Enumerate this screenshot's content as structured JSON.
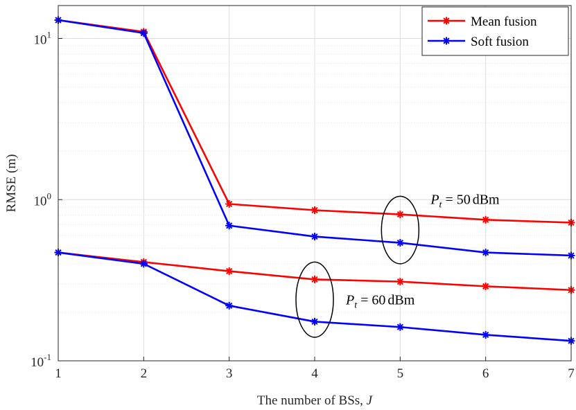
{
  "chart_data": {
    "type": "line",
    "xlabel_prefix": "The number of BSs, ",
    "xlabel_var": "J",
    "ylabel": "RMSE (m)",
    "yscale": "log",
    "xlim": [
      1,
      7
    ],
    "ylim": [
      0.1,
      16
    ],
    "x": [
      1,
      2,
      3,
      4,
      5,
      6,
      7
    ],
    "x_tick_labels": [
      "1",
      "2",
      "3",
      "4",
      "5",
      "6",
      "7"
    ],
    "y_tick_labels": [
      {
        "value": 0.1,
        "base": "10",
        "exp": "-1"
      },
      {
        "value": 1,
        "base": "10",
        "exp": "0"
      },
      {
        "value": 10,
        "base": "10",
        "exp": "1"
      }
    ],
    "grid": true,
    "legend_position": "top-right",
    "series": [
      {
        "name": "Mean fusion",
        "group": "Pt=50dBm",
        "color": "#ff0000",
        "legend": true,
        "values": [
          13.0,
          11.0,
          0.94,
          0.86,
          0.81,
          0.75,
          0.72
        ]
      },
      {
        "name": "Soft fusion",
        "group": "Pt=50dBm",
        "color": "#0000ff",
        "legend": true,
        "values": [
          13.0,
          10.8,
          0.69,
          0.59,
          0.54,
          0.47,
          0.45
        ]
      },
      {
        "name": "Mean fusion",
        "group": "Pt=60dBm",
        "color": "#ff0000",
        "legend": false,
        "values": [
          0.47,
          0.41,
          0.36,
          0.32,
          0.31,
          0.29,
          0.275
        ]
      },
      {
        "name": "Soft fusion",
        "group": "Pt=60dBm",
        "color": "#0000ff",
        "legend": false,
        "values": [
          0.47,
          0.4,
          0.22,
          0.175,
          0.162,
          0.145,
          0.133
        ]
      }
    ],
    "annotations": [
      {
        "id": "pt50",
        "var": "P",
        "sub": "t",
        "eq": " = ",
        "value": "50",
        "unit": "dBm",
        "x": 5,
        "y_low": 0.4,
        "y_high": 1.05
      },
      {
        "id": "pt60",
        "var": "P",
        "sub": "t",
        "eq": " = ",
        "value": "60",
        "unit": "dBm",
        "x": 4,
        "y_low": 0.14,
        "y_high": 0.41
      }
    ]
  }
}
